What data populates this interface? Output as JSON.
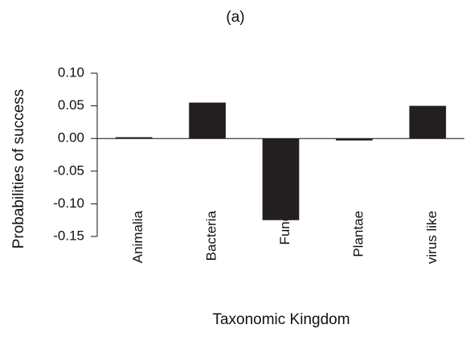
{
  "chart_data": {
    "type": "bar",
    "title": "(a)",
    "x_label": "Taxonomic Kingdom",
    "y_label": "Probabilities of success",
    "categories": [
      "Animalia",
      "Bacteria",
      "Fungi",
      "Plantae",
      "virus like"
    ],
    "values": [
      0.002,
      0.055,
      -0.125,
      -0.003,
      0.05
    ],
    "color": "#231f20",
    "ylim": [
      -0.15,
      0.1
    ],
    "yticks": [
      {
        "value": -0.15,
        "label": "-0.15"
      },
      {
        "value": -0.1,
        "label": "-0.10"
      },
      {
        "value": -0.05,
        "label": "-0.05"
      },
      {
        "value": 0,
        "label": "0.00"
      },
      {
        "value": 0.05,
        "label": "0.05"
      },
      {
        "value": 0.1,
        "label": "0.10"
      }
    ],
    "grid": false
  }
}
